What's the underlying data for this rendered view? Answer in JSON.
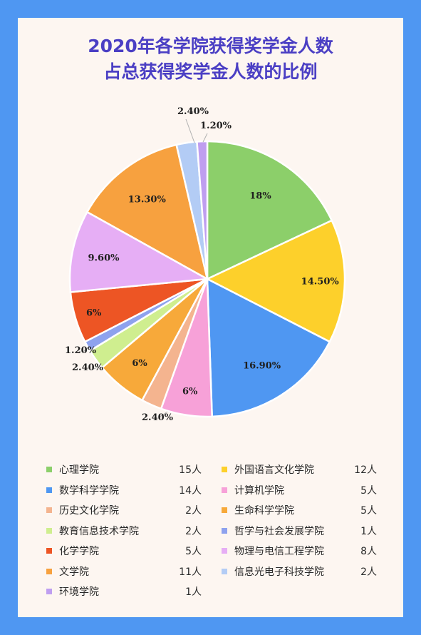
{
  "title_lines": [
    "2020年各学院获得奖学金人数",
    "占总获得奖学金人数的比例"
  ],
  "chart_data": {
    "type": "pie",
    "title": "2020年各学院获得奖学金人数占总获得奖学金人数的比例",
    "slices": [
      {
        "name": "心理学院",
        "count": "15人",
        "value": 18,
        "label": "18%",
        "color": "#8ccf6a"
      },
      {
        "name": "外国语言文化学院",
        "count": "12人",
        "value": 14.5,
        "label": "14.50%",
        "color": "#fdd02b"
      },
      {
        "name": "数学科学学院",
        "count": "14人",
        "value": 16.9,
        "label": "16.90%",
        "color": "#4f97f2"
      },
      {
        "name": "计算机学院",
        "count": "5人",
        "value": 6,
        "label": "6%",
        "color": "#f7a1d8"
      },
      {
        "name": "历史文化学院",
        "count": "2人",
        "value": 2.4,
        "label": "2.40%",
        "color": "#f4b48f"
      },
      {
        "name": "生命科学学院",
        "count": "5人",
        "value": 6,
        "label": "6%",
        "color": "#f7a93a"
      },
      {
        "name": "教育信息技术学院",
        "count": "2人",
        "value": 2.4,
        "label": "2.40%",
        "color": "#cfee8f"
      },
      {
        "name": "哲学与社会发展学院",
        "count": "1人",
        "value": 1.2,
        "label": "1.20%",
        "color": "#8ea2ee"
      },
      {
        "name": "化学学院",
        "count": "5人",
        "value": 6,
        "label": "6%",
        "color": "#ed5524"
      },
      {
        "name": "物理与电信工程学院",
        "count": "8人",
        "value": 9.6,
        "label": "9.60%",
        "color": "#e6aef5"
      },
      {
        "name": "文学院",
        "count": "11人",
        "value": 13.3,
        "label": "13.30%",
        "color": "#f7a13f"
      },
      {
        "name": "信息光电子科技学院",
        "count": "2人",
        "value": 2.4,
        "label": "2.40%",
        "color": "#b3ccf5"
      },
      {
        "name": "环境学院",
        "count": "1人",
        "value": 1.2,
        "label": "1.20%",
        "color": "#bf9ef0"
      }
    ],
    "legend_position": "bottom",
    "start": "top, clockwise"
  }
}
